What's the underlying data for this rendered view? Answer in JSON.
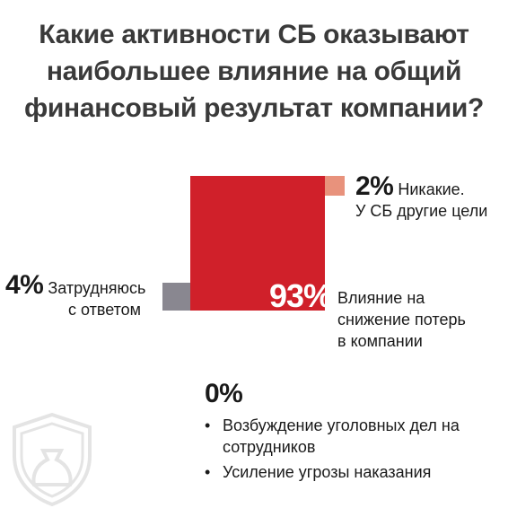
{
  "title_lines": [
    "Какие активности СБ оказывают",
    "наибольшее влияние на общий",
    "финансовый результат компании?"
  ],
  "colors": {
    "main": "#d0202a",
    "none": "#e8927c",
    "hard": "#898790",
    "watermark": "#e4e4e4"
  },
  "icons": {
    "watermark": "shield-money-bag-icon",
    "bullet": "•"
  },
  "chart_data": {
    "type": "square-area",
    "unit": "%",
    "segments": [
      {
        "value": 93,
        "label_pct": "93%",
        "label_lines": [
          "Влияние на",
          "снижение потерь",
          "в компании"
        ],
        "color": "#d0202a"
      },
      {
        "value": 2,
        "label_pct": "2%",
        "label_lines": [
          "Никакие.",
          "У СБ другие цели"
        ],
        "color": "#e8927c"
      },
      {
        "value": 4,
        "label_pct": "4%",
        "label_lines": [
          "Затрудняюсь",
          "с ответом"
        ],
        "color": "#898790"
      },
      {
        "value": 0,
        "label_pct": "0%",
        "items": [
          "Возбуждение уголовных дел на сотрудников",
          "Усиление угрозы наказания"
        ]
      }
    ]
  }
}
